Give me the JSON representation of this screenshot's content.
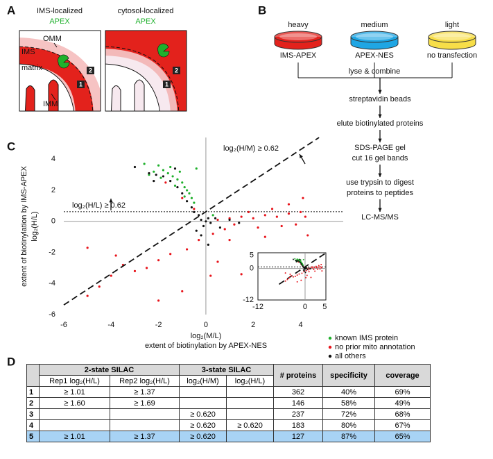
{
  "panel_labels": [
    "A",
    "B",
    "C",
    "D"
  ],
  "panel_a": {
    "left": {
      "title": "IMS-localized",
      "subtitle": "APEX"
    },
    "right": {
      "title": "cytosol-localized",
      "subtitle": "APEX"
    },
    "labels": {
      "omm": "OMM",
      "ims": "IMS",
      "matrix": "matrix",
      "imm": "IMM"
    },
    "badges": [
      "1",
      "2"
    ]
  },
  "panel_b": {
    "dishes": [
      {
        "label": "heavy",
        "sample": "IMS-APEX",
        "color": "#e3221c"
      },
      {
        "label": "medium",
        "sample": "APEX-NES",
        "color": "#1fa6e4"
      },
      {
        "label": "light",
        "sample": "no transfection",
        "color": "#f7de48"
      }
    ],
    "combine": "lyse & combine",
    "steps": [
      [
        "streptavidin beads"
      ],
      [
        "elute biotinylated proteins"
      ],
      [
        "SDS-PAGE gel",
        "cut 16 gel bands"
      ],
      [
        "use trypsin to digest",
        "proteins to peptides"
      ],
      [
        "LC-MS/MS"
      ]
    ]
  },
  "chart_data": {
    "type": "scatter",
    "x_label": "log₂(M/L)",
    "x_label_sub": "extent of biotinylation by APEX-NES",
    "y_label": "log₂(H/L)",
    "y_label_sub": "extent of biotinylation by IMS-APEX",
    "xlim": [
      -6,
      5.8
    ],
    "ylim": [
      -6,
      5.4
    ],
    "xticks": [
      -6,
      -4,
      -2,
      0,
      2,
      4
    ],
    "yticks": [
      -6,
      -4,
      -2,
      0,
      2,
      4
    ],
    "threshold": 0.62,
    "annotations": [
      "log₂(H/M) ≥ 0.62",
      "log₂(H/L) ≥ 0.62"
    ],
    "series": [
      {
        "name": "no prior mito annotation",
        "color": "#e8141b",
        "x": [
          0.5,
          1,
          1.5,
          2,
          2.5,
          3,
          3.5,
          4,
          4.2,
          3.8,
          3.2,
          2.8,
          2.2,
          1.8,
          1.2,
          0.8,
          0.3,
          -0.3,
          -0.8,
          -1.5,
          -2,
          -2.5,
          -3,
          -3.5,
          -4,
          -4.5,
          -5,
          -1,
          -2,
          0.2,
          0.5,
          1,
          2.5,
          3.5,
          4.1,
          -0.5,
          -1,
          -1.7,
          -5,
          -3.8,
          1.5,
          4.3
        ],
        "y": [
          0.1,
          0.2,
          0.3,
          0.2,
          0.4,
          0.3,
          0.5,
          0.6,
          0.3,
          -0.2,
          -0.3,
          0.8,
          -0.4,
          0.6,
          -0.2,
          -0.5,
          -0.8,
          -1.2,
          -1.8,
          -2.1,
          -2.5,
          -3,
          -3.2,
          -2.8,
          -3.5,
          -4.2,
          -4.8,
          -4.5,
          -5.1,
          -3.5,
          -2.6,
          -1.2,
          -1,
          1.1,
          1.5,
          0.8,
          1.5,
          2.5,
          -1.7,
          -2.2,
          -3.4,
          -0.9
        ]
      },
      {
        "name": "known IMS protein",
        "color": "#1fb02c",
        "x": [
          -2,
          -1.8,
          -1.6,
          -1.4,
          -1.2,
          -1,
          -0.9,
          -0.8,
          -0.7,
          -1.5,
          -2.2,
          -2.4,
          -1.1,
          -0.6,
          -0.5,
          -1.3,
          -1.9,
          -0.4,
          -2.6,
          -0.9,
          0.3
        ],
        "y": [
          3.6,
          3.3,
          3.1,
          2.9,
          2.7,
          2.5,
          2.2,
          2,
          1.8,
          3.5,
          3.2,
          3,
          3.2,
          1.5,
          1.2,
          2.3,
          2.8,
          3.4,
          3.7,
          1.6,
          0.4
        ]
      },
      {
        "name": "all others",
        "color": "#111111",
        "x": [
          0,
          -0.2,
          0.2,
          0.1,
          -0.1,
          -0.3,
          0.4,
          -0.5,
          -0.6,
          -0.8,
          -1,
          -1.2,
          -1.5,
          -1.8,
          -2.2,
          -2.4,
          -3,
          -1.3,
          0.6,
          1,
          1.4,
          -0.2,
          0.1,
          -0.4,
          -2.1
        ],
        "y": [
          0,
          0.1,
          -0.1,
          0.2,
          -0.3,
          0.4,
          0.2,
          0.6,
          0.9,
          1.3,
          1.8,
          2.2,
          2.6,
          2.9,
          2.6,
          3.1,
          3.5,
          3.4,
          -0.4,
          0.1,
          -0.1,
          -0.9,
          -1.5,
          -0.6,
          3
        ]
      }
    ],
    "inset": {
      "xlim": [
        -12,
        5.3
      ],
      "ylim": [
        -12,
        6
      ],
      "xticks": [
        -12,
        0,
        5
      ],
      "yticks": [
        -12,
        0,
        5
      ]
    }
  },
  "table": {
    "group_headers": [
      "2-state SILAC",
      "3-state SILAC"
    ],
    "columns": [
      "Rep1 log₂(H/L)",
      "Rep2 log₂(H/L)",
      "log₂(H/M)",
      "log₂(H/L)",
      "# proteins",
      "specificity",
      "coverage"
    ],
    "rows": [
      [
        "1",
        "≥ 1.01",
        "≥ 1.37",
        null,
        null,
        "362",
        "40%",
        "69%"
      ],
      [
        "2",
        "≥ 1.60",
        "≥ 1.69",
        null,
        null,
        "146",
        "58%",
        "49%"
      ],
      [
        "3",
        null,
        null,
        "≥ 0.620",
        null,
        "237",
        "72%",
        "68%"
      ],
      [
        "4",
        null,
        null,
        "≥ 0.620",
        "≥ 0.620",
        "183",
        "80%",
        "67%"
      ],
      [
        "5",
        "≥ 1.01",
        "≥ 1.37",
        "≥ 0.620",
        null,
        "127",
        "87%",
        "65%"
      ]
    ],
    "highlight_row": 4,
    "highlight_color": "#a8d3f5"
  }
}
